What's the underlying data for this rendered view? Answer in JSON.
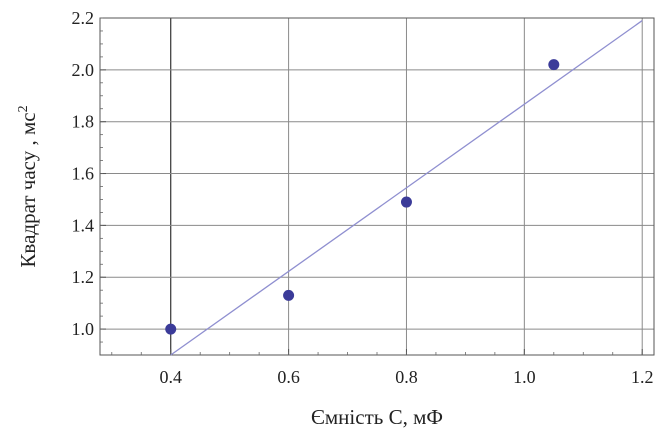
{
  "chart_data": {
    "type": "scatter",
    "title": "",
    "xlabel": "Ємність С, мФ",
    "ylabel": "Квадрат часу , мс",
    "ylabel_sup": "2",
    "xlim": [
      0.28,
      1.22
    ],
    "ylim": [
      0.9,
      2.2
    ],
    "xticks": [
      0.4,
      0.6,
      0.8,
      1.0,
      1.2
    ],
    "xtick_labels": [
      "0.4",
      "0.6",
      "0.8",
      "1.0",
      "1.2"
    ],
    "yticks": [
      1.0,
      1.2,
      1.4,
      1.6,
      1.8,
      2.0,
      2.2
    ],
    "ytick_labels": [
      "1.0",
      "1.2",
      "1.4",
      "1.6",
      "1.8",
      "2.0",
      "2.2"
    ],
    "grid": true,
    "series": [
      {
        "type": "scatter",
        "x": [
          0.4,
          0.6,
          0.8,
          1.05
        ],
        "y": [
          1.0,
          1.13,
          1.49,
          2.02
        ],
        "color": "#3b3b99"
      },
      {
        "type": "line",
        "x": [
          0.4,
          1.2
        ],
        "y": [
          0.9,
          2.19
        ],
        "color": "#8f8fd0"
      }
    ]
  }
}
